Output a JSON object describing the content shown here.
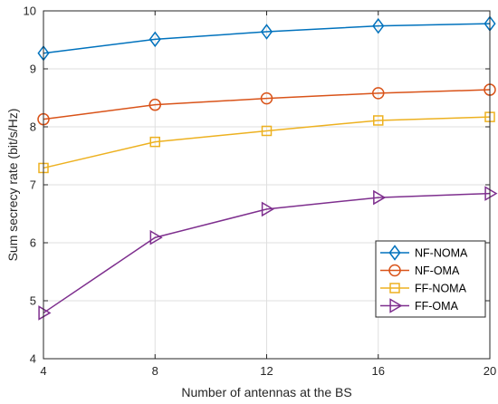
{
  "chart_data": {
    "type": "line",
    "title": "",
    "xlabel": "Number of antennas at the BS",
    "ylabel": "Sum secrecy rate (bit/s/Hz)",
    "x": [
      4,
      8,
      12,
      16,
      20
    ],
    "xticks": [
      4,
      8,
      12,
      16,
      20
    ],
    "yticks": [
      4,
      5,
      6,
      7,
      8,
      9,
      10
    ],
    "xlim": [
      4,
      20
    ],
    "ylim": [
      4,
      10
    ],
    "grid": true,
    "legend_position": "bottom-right",
    "series": [
      {
        "name": "NF-NOMA",
        "values": [
          9.27,
          9.51,
          9.64,
          9.74,
          9.78
        ],
        "color": "#0072BD",
        "marker": "diamond"
      },
      {
        "name": "NF-OMA",
        "values": [
          8.13,
          8.38,
          8.49,
          8.58,
          8.64
        ],
        "color": "#D95319",
        "marker": "circle"
      },
      {
        "name": "FF-NOMA",
        "values": [
          7.29,
          7.74,
          7.93,
          8.11,
          8.17
        ],
        "color": "#EDB120",
        "marker": "square"
      },
      {
        "name": "FF-OMA",
        "values": [
          4.79,
          6.09,
          6.58,
          6.78,
          6.85
        ],
        "color": "#7E2F8E",
        "marker": "triangle-right"
      }
    ]
  }
}
